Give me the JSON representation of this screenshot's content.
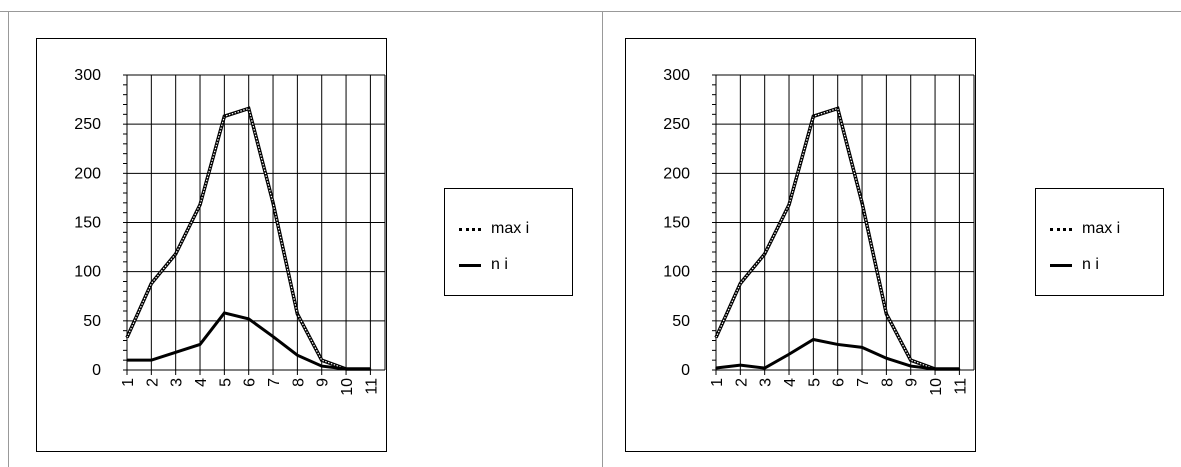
{
  "chart_data": [
    {
      "type": "line",
      "categories": [
        "1",
        "2",
        "3",
        "4",
        "5",
        "6",
        "7",
        "8",
        "9",
        "10",
        "11"
      ],
      "ylim": [
        0,
        300
      ],
      "yticks": [
        "0",
        "50",
        "100",
        "150",
        "200",
        "250",
        "300"
      ],
      "grid": true,
      "legend_placement": "right",
      "series": [
        {
          "name": "max i",
          "style": "dotted",
          "values": [
            33,
            88,
            118,
            168,
            258,
            266,
            170,
            57,
            10,
            1,
            1
          ]
        },
        {
          "name": "n i",
          "style": "solid",
          "values": [
            10,
            10,
            18,
            26,
            58,
            52,
            34,
            15,
            4,
            1,
            1
          ]
        }
      ]
    },
    {
      "type": "line",
      "categories": [
        "1",
        "2",
        "3",
        "4",
        "5",
        "6",
        "7",
        "8",
        "9",
        "10",
        "11"
      ],
      "ylim": [
        0,
        300
      ],
      "yticks": [
        "0",
        "50",
        "100",
        "150",
        "200",
        "250",
        "300"
      ],
      "grid": true,
      "legend_placement": "right",
      "series": [
        {
          "name": "max i",
          "style": "dotted",
          "values": [
            33,
            88,
            118,
            168,
            258,
            266,
            170,
            57,
            10,
            1,
            1
          ]
        },
        {
          "name": "n i",
          "style": "solid",
          "values": [
            2,
            5,
            2,
            16,
            31,
            26,
            23,
            12,
            4,
            1,
            1
          ]
        }
      ]
    }
  ]
}
